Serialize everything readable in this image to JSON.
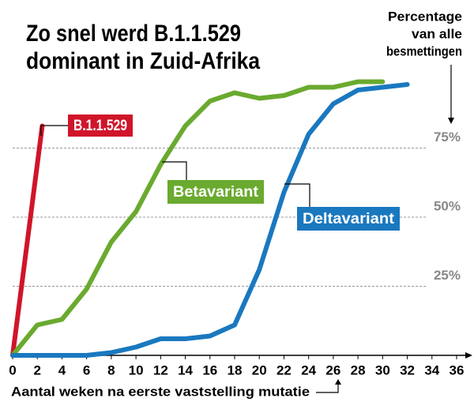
{
  "chart_data": {
    "type": "line",
    "title": [
      "Zo snel werd B.1.1.529",
      "dominant in Zuid-Afrika"
    ],
    "ylabel": [
      "Percentage",
      "van alle",
      "besmettingen"
    ],
    "xlabel": "Aantal weken na eerste vaststelling mutatie",
    "xlim": [
      0,
      36
    ],
    "xticks": [
      0,
      2,
      4,
      6,
      8,
      10,
      12,
      14,
      16,
      18,
      20,
      22,
      24,
      26,
      28,
      30,
      32,
      34,
      36
    ],
    "ylim": [
      0,
      100
    ],
    "yticks": [
      {
        "value": 25,
        "label": "25%"
      },
      {
        "value": 50,
        "label": "50%"
      },
      {
        "value": 75,
        "label": "75%"
      }
    ],
    "grid": true,
    "series": [
      {
        "name": "B.1.1.529",
        "color": "#d0152a",
        "x": [
          0,
          2.4
        ],
        "values": [
          0,
          83
        ]
      },
      {
        "name": "Betavariant",
        "color": "#6aaa2f",
        "x": [
          0,
          2,
          4,
          6,
          8,
          10,
          12,
          14,
          16,
          18,
          20,
          22,
          24,
          26,
          28,
          30
        ],
        "values": [
          0,
          11,
          13,
          24,
          41,
          52,
          69,
          83,
          92,
          95,
          93,
          94,
          97,
          97,
          99,
          99
        ]
      },
      {
        "name": "Deltavariant",
        "color": "#1a78bf",
        "x": [
          0,
          2,
          4,
          6,
          8,
          10,
          12,
          14,
          16,
          18,
          20,
          22,
          24,
          26,
          28,
          30,
          32
        ],
        "values": [
          0,
          0,
          0,
          0,
          1,
          3,
          6,
          6,
          7,
          11,
          31,
          59,
          80,
          91,
          96,
          97,
          98
        ]
      }
    ]
  }
}
